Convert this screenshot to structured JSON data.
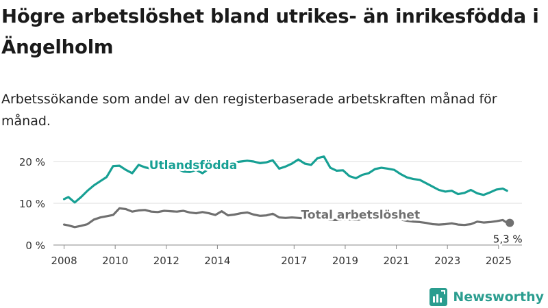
{
  "title": "Högre arbetslöshet bland utrikes- än inrikesfödda i Ängelholm",
  "subtitle": "Arbetssökande som andel av den registerbaserade arbetskraften månad för månad.",
  "brand": {
    "name": "Newsworthy"
  },
  "colors": {
    "utlandsfodda": "#17a094",
    "total": "#707070",
    "grid": "#dddddd",
    "axis": "#888888"
  },
  "chart_data": {
    "type": "line",
    "x_unit": "date (year-month)",
    "y_unit": "%",
    "ylim": [
      0,
      20
    ],
    "xlim": [
      "2007-08",
      "2025-12"
    ],
    "y_ticks": [
      {
        "value": 0,
        "label": "0 %"
      },
      {
        "value": 10,
        "label": "10 %"
      },
      {
        "value": 20,
        "label": "20 %"
      }
    ],
    "x_ticks": [
      {
        "year": 2008,
        "label": "2008"
      },
      {
        "year": 2010,
        "label": "2010"
      },
      {
        "year": 2012,
        "label": "2012"
      },
      {
        "year": 2014,
        "label": "2014"
      },
      {
        "year": 2017,
        "label": "2017"
      },
      {
        "year": 2019,
        "label": "2019"
      },
      {
        "year": 2021,
        "label": "2021"
      },
      {
        "year": 2023,
        "label": "2023"
      },
      {
        "year": 2025,
        "label": "2025"
      }
    ],
    "grid": "horizontal",
    "series": [
      {
        "name": "Utlandsfödda",
        "label_near": "2012-06",
        "points": [
          [
            "2008-01",
            11.0
          ],
          [
            "2008-03",
            11.5
          ],
          [
            "2008-06",
            10.2
          ],
          [
            "2008-09",
            11.5
          ],
          [
            "2008-12",
            13.0
          ],
          [
            "2009-03",
            14.3
          ],
          [
            "2009-06",
            15.3
          ],
          [
            "2009-09",
            16.3
          ],
          [
            "2009-12",
            18.9
          ],
          [
            "2010-03",
            19.0
          ],
          [
            "2010-06",
            18.0
          ],
          [
            "2010-09",
            17.2
          ],
          [
            "2010-12",
            19.2
          ],
          [
            "2011-03",
            18.6
          ],
          [
            "2011-06",
            18.3
          ],
          [
            "2011-09",
            18.8
          ],
          [
            "2011-12",
            18.5
          ],
          [
            "2012-03",
            18.0
          ],
          [
            "2012-06",
            18.3
          ],
          [
            "2012-09",
            17.6
          ],
          [
            "2012-12",
            17.5
          ],
          [
            "2013-03",
            18.0
          ],
          [
            "2013-06",
            17.2
          ],
          [
            "2013-09",
            18.3
          ],
          [
            "2013-12",
            18.8
          ],
          [
            "2014-03",
            19.0
          ],
          [
            "2014-06",
            19.5
          ],
          [
            "2014-09",
            19.8
          ],
          [
            "2014-12",
            20.0
          ],
          [
            "2015-03",
            20.2
          ],
          [
            "2015-06",
            20.0
          ],
          [
            "2015-09",
            19.6
          ],
          [
            "2015-12",
            19.8
          ],
          [
            "2016-03",
            20.3
          ],
          [
            "2016-06",
            18.3
          ],
          [
            "2016-09",
            18.8
          ],
          [
            "2016-12",
            19.5
          ],
          [
            "2017-03",
            20.5
          ],
          [
            "2017-06",
            19.5
          ],
          [
            "2017-09",
            19.2
          ],
          [
            "2017-12",
            20.8
          ],
          [
            "2018-03",
            21.2
          ],
          [
            "2018-06",
            18.5
          ],
          [
            "2018-09",
            17.8
          ],
          [
            "2018-12",
            17.9
          ],
          [
            "2019-03",
            16.5
          ],
          [
            "2019-06",
            16.0
          ],
          [
            "2019-09",
            16.8
          ],
          [
            "2019-12",
            17.2
          ],
          [
            "2020-03",
            18.2
          ],
          [
            "2020-06",
            18.5
          ],
          [
            "2020-09",
            18.3
          ],
          [
            "2020-12",
            18.0
          ],
          [
            "2021-03",
            17.0
          ],
          [
            "2021-06",
            16.2
          ],
          [
            "2021-09",
            15.8
          ],
          [
            "2021-12",
            15.6
          ],
          [
            "2022-03",
            14.8
          ],
          [
            "2022-06",
            14.0
          ],
          [
            "2022-09",
            13.2
          ],
          [
            "2022-12",
            12.8
          ],
          [
            "2023-03",
            13.0
          ],
          [
            "2023-06",
            12.2
          ],
          [
            "2023-09",
            12.5
          ],
          [
            "2023-12",
            13.2
          ],
          [
            "2024-03",
            12.4
          ],
          [
            "2024-06",
            12.0
          ],
          [
            "2024-09",
            12.6
          ],
          [
            "2024-12",
            13.3
          ],
          [
            "2025-03",
            13.5
          ],
          [
            "2025-05",
            13.0
          ]
        ]
      },
      {
        "name": "Total arbetslöshet",
        "label_near": "2019-01",
        "last_value_label": "5,3 %",
        "points": [
          [
            "2008-01",
            4.9
          ],
          [
            "2008-03",
            4.7
          ],
          [
            "2008-06",
            4.3
          ],
          [
            "2008-09",
            4.6
          ],
          [
            "2008-12",
            5.0
          ],
          [
            "2009-03",
            6.1
          ],
          [
            "2009-06",
            6.6
          ],
          [
            "2009-09",
            6.9
          ],
          [
            "2009-12",
            7.2
          ],
          [
            "2010-03",
            8.8
          ],
          [
            "2010-06",
            8.6
          ],
          [
            "2010-09",
            8.0
          ],
          [
            "2010-12",
            8.3
          ],
          [
            "2011-03",
            8.4
          ],
          [
            "2011-06",
            8.0
          ],
          [
            "2011-09",
            7.9
          ],
          [
            "2011-12",
            8.2
          ],
          [
            "2012-03",
            8.1
          ],
          [
            "2012-06",
            8.0
          ],
          [
            "2012-09",
            8.2
          ],
          [
            "2012-12",
            7.8
          ],
          [
            "2013-03",
            7.6
          ],
          [
            "2013-06",
            7.9
          ],
          [
            "2013-09",
            7.6
          ],
          [
            "2013-12",
            7.2
          ],
          [
            "2014-03",
            8.1
          ],
          [
            "2014-06",
            7.1
          ],
          [
            "2014-09",
            7.3
          ],
          [
            "2014-12",
            7.6
          ],
          [
            "2015-03",
            7.8
          ],
          [
            "2015-06",
            7.3
          ],
          [
            "2015-09",
            7.0
          ],
          [
            "2015-12",
            7.1
          ],
          [
            "2016-03",
            7.5
          ],
          [
            "2016-06",
            6.6
          ],
          [
            "2016-09",
            6.5
          ],
          [
            "2016-12",
            6.6
          ],
          [
            "2017-03",
            6.5
          ],
          [
            "2017-06",
            6.4
          ],
          [
            "2017-09",
            6.3
          ],
          [
            "2017-12",
            6.5
          ],
          [
            "2018-03",
            6.3
          ],
          [
            "2018-06",
            6.0
          ],
          [
            "2018-09",
            6.0
          ],
          [
            "2018-12",
            6.1
          ],
          [
            "2019-03",
            6.1
          ],
          [
            "2019-06",
            6.0
          ],
          [
            "2019-09",
            6.2
          ],
          [
            "2019-12",
            6.3
          ],
          [
            "2020-03",
            6.9
          ],
          [
            "2020-06",
            6.8
          ],
          [
            "2020-09",
            6.5
          ],
          [
            "2020-12",
            6.4
          ],
          [
            "2021-03",
            6.1
          ],
          [
            "2021-06",
            5.8
          ],
          [
            "2021-09",
            5.6
          ],
          [
            "2021-12",
            5.5
          ],
          [
            "2022-03",
            5.3
          ],
          [
            "2022-06",
            5.0
          ],
          [
            "2022-09",
            4.9
          ],
          [
            "2022-12",
            5.0
          ],
          [
            "2023-03",
            5.2
          ],
          [
            "2023-06",
            4.9
          ],
          [
            "2023-09",
            4.8
          ],
          [
            "2023-12",
            5.0
          ],
          [
            "2024-03",
            5.6
          ],
          [
            "2024-06",
            5.4
          ],
          [
            "2024-09",
            5.5
          ],
          [
            "2024-12",
            5.7
          ],
          [
            "2025-03",
            6.0
          ],
          [
            "2025-05",
            5.3
          ]
        ]
      }
    ]
  }
}
